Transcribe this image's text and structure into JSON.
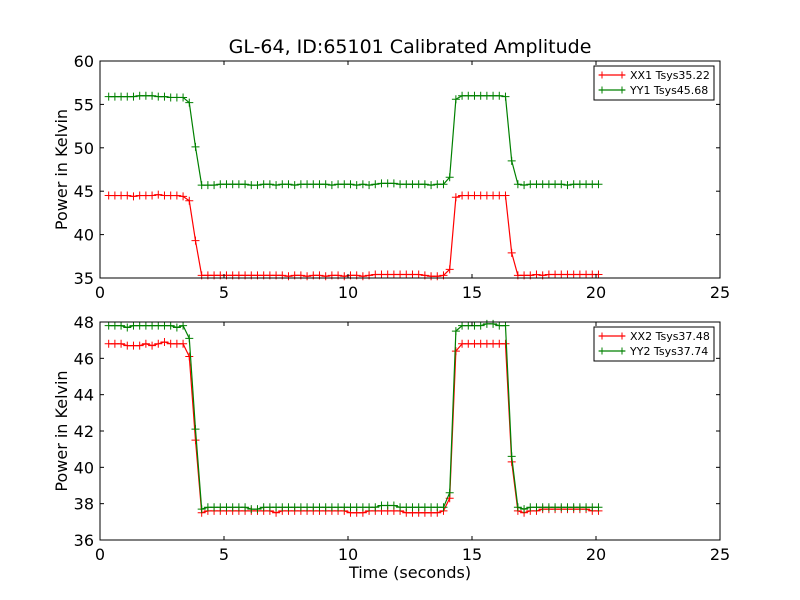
{
  "chart_data": [
    {
      "type": "line",
      "title": "GL-64, ID:65101 Calibrated Amplitude",
      "xlabel": "",
      "ylabel": "Power in Kelvin",
      "xlim": [
        0,
        25
      ],
      "ylim": [
        35,
        60
      ],
      "xticks": [
        "0",
        "5",
        "10",
        "15",
        "20",
        "25"
      ],
      "yticks": [
        "35",
        "40",
        "45",
        "50",
        "55",
        "60"
      ],
      "grid": false,
      "legend_position": "top-right",
      "x": [
        0.35,
        0.6,
        0.85,
        1.1,
        1.35,
        1.6,
        1.85,
        2.1,
        2.35,
        2.6,
        2.85,
        3.1,
        3.35,
        3.6,
        3.85,
        4.1,
        4.35,
        4.6,
        4.85,
        5.1,
        5.35,
        5.6,
        5.85,
        6.1,
        6.35,
        6.6,
        6.85,
        7.1,
        7.35,
        7.6,
        7.85,
        8.1,
        8.35,
        8.6,
        8.85,
        9.1,
        9.35,
        9.6,
        9.85,
        10.1,
        10.35,
        10.6,
        10.85,
        11.1,
        11.35,
        11.6,
        11.85,
        12.1,
        12.35,
        12.6,
        12.85,
        13.1,
        13.35,
        13.6,
        13.85,
        14.1,
        14.35,
        14.6,
        14.85,
        15.1,
        15.35,
        15.6,
        15.85,
        16.1,
        16.35,
        16.6,
        16.85,
        17.1,
        17.35,
        17.6,
        17.85,
        18.1,
        18.35,
        18.6,
        18.85,
        19.1,
        19.35,
        19.6,
        19.85,
        20.1
      ],
      "series": [
        {
          "name": "XX1 Tsys35.22",
          "color": "#ff0000",
          "values": [
            44.5,
            44.5,
            44.5,
            44.5,
            44.4,
            44.5,
            44.5,
            44.5,
            44.6,
            44.5,
            44.5,
            44.5,
            44.4,
            43.9,
            39.3,
            35.3,
            35.3,
            35.3,
            35.3,
            35.3,
            35.3,
            35.3,
            35.3,
            35.3,
            35.3,
            35.3,
            35.3,
            35.3,
            35.3,
            35.2,
            35.3,
            35.3,
            35.2,
            35.3,
            35.3,
            35.2,
            35.3,
            35.3,
            35.2,
            35.3,
            35.3,
            35.2,
            35.3,
            35.4,
            35.4,
            35.4,
            35.4,
            35.4,
            35.4,
            35.4,
            35.4,
            35.3,
            35.2,
            35.2,
            35.3,
            36.0,
            44.3,
            44.5,
            44.5,
            44.5,
            44.5,
            44.5,
            44.5,
            44.5,
            44.5,
            37.9,
            35.3,
            35.3,
            35.3,
            35.4,
            35.3,
            35.4,
            35.4,
            35.4,
            35.4,
            35.4,
            35.4,
            35.4,
            35.4,
            35.4
          ]
        },
        {
          "name": "YY1 Tsys45.68",
          "color": "#008000",
          "values": [
            55.9,
            55.9,
            55.9,
            55.9,
            55.9,
            56.0,
            56.0,
            56.0,
            55.9,
            55.9,
            55.8,
            55.8,
            55.8,
            55.2,
            50.1,
            45.7,
            45.7,
            45.7,
            45.8,
            45.8,
            45.8,
            45.8,
            45.8,
            45.7,
            45.7,
            45.8,
            45.8,
            45.7,
            45.8,
            45.8,
            45.7,
            45.8,
            45.8,
            45.8,
            45.8,
            45.8,
            45.7,
            45.8,
            45.8,
            45.8,
            45.7,
            45.8,
            45.7,
            45.8,
            45.9,
            45.9,
            45.9,
            45.8,
            45.8,
            45.8,
            45.8,
            45.8,
            45.7,
            45.8,
            45.8,
            46.6,
            55.6,
            56.0,
            56.0,
            56.0,
            56.0,
            56.0,
            56.0,
            56.0,
            55.9,
            48.5,
            45.8,
            45.7,
            45.8,
            45.8,
            45.8,
            45.8,
            45.8,
            45.8,
            45.7,
            45.8,
            45.8,
            45.8,
            45.8,
            45.8
          ]
        }
      ]
    },
    {
      "type": "line",
      "title": "",
      "xlabel": "Time (seconds)",
      "ylabel": "Power in Kelvin",
      "xlim": [
        0,
        25
      ],
      "ylim": [
        36,
        48
      ],
      "xticks": [
        "0",
        "5",
        "10",
        "15",
        "20",
        "25"
      ],
      "yticks": [
        "36",
        "38",
        "40",
        "42",
        "44",
        "46",
        "48"
      ],
      "grid": false,
      "legend_position": "top-right",
      "x": [
        0.35,
        0.6,
        0.85,
        1.1,
        1.35,
        1.6,
        1.85,
        2.1,
        2.35,
        2.6,
        2.85,
        3.1,
        3.35,
        3.6,
        3.85,
        4.1,
        4.35,
        4.6,
        4.85,
        5.1,
        5.35,
        5.6,
        5.85,
        6.1,
        6.35,
        6.6,
        6.85,
        7.1,
        7.35,
        7.6,
        7.85,
        8.1,
        8.35,
        8.6,
        8.85,
        9.1,
        9.35,
        9.6,
        9.85,
        10.1,
        10.35,
        10.6,
        10.85,
        11.1,
        11.35,
        11.6,
        11.85,
        12.1,
        12.35,
        12.6,
        12.85,
        13.1,
        13.35,
        13.6,
        13.85,
        14.1,
        14.35,
        14.6,
        14.85,
        15.1,
        15.35,
        15.6,
        15.85,
        16.1,
        16.35,
        16.6,
        16.85,
        17.1,
        17.35,
        17.6,
        17.85,
        18.1,
        18.35,
        18.6,
        18.85,
        19.1,
        19.35,
        19.6,
        19.85,
        20.1
      ],
      "series": [
        {
          "name": "XX2 Tsys37.48",
          "color": "#ff0000",
          "values": [
            46.8,
            46.8,
            46.8,
            46.7,
            46.7,
            46.7,
            46.8,
            46.7,
            46.8,
            46.9,
            46.8,
            46.8,
            46.8,
            46.1,
            41.5,
            37.5,
            37.6,
            37.6,
            37.6,
            37.6,
            37.6,
            37.6,
            37.6,
            37.6,
            37.6,
            37.6,
            37.6,
            37.5,
            37.6,
            37.6,
            37.6,
            37.6,
            37.6,
            37.6,
            37.6,
            37.6,
            37.6,
            37.6,
            37.6,
            37.5,
            37.5,
            37.5,
            37.6,
            37.6,
            37.6,
            37.6,
            37.6,
            37.6,
            37.5,
            37.5,
            37.5,
            37.5,
            37.5,
            37.5,
            37.6,
            38.3,
            46.4,
            46.8,
            46.8,
            46.8,
            46.8,
            46.8,
            46.8,
            46.8,
            46.8,
            40.3,
            37.6,
            37.5,
            37.6,
            37.6,
            37.7,
            37.7,
            37.7,
            37.7,
            37.7,
            37.7,
            37.7,
            37.7,
            37.6,
            37.6
          ]
        },
        {
          "name": "YY2 Tsys37.74",
          "color": "#008000",
          "values": [
            47.8,
            47.8,
            47.8,
            47.7,
            47.8,
            47.8,
            47.8,
            47.8,
            47.8,
            47.8,
            47.8,
            47.7,
            47.8,
            47.1,
            42.1,
            37.7,
            37.8,
            37.8,
            37.8,
            37.8,
            37.8,
            37.8,
            37.8,
            37.7,
            37.7,
            37.8,
            37.8,
            37.8,
            37.8,
            37.8,
            37.8,
            37.8,
            37.8,
            37.8,
            37.8,
            37.8,
            37.8,
            37.8,
            37.8,
            37.8,
            37.8,
            37.8,
            37.8,
            37.8,
            37.9,
            37.9,
            37.9,
            37.8,
            37.8,
            37.8,
            37.8,
            37.8,
            37.8,
            37.8,
            37.8,
            38.6,
            47.5,
            47.8,
            47.8,
            47.8,
            47.8,
            47.9,
            47.9,
            47.8,
            47.8,
            40.6,
            37.8,
            37.7,
            37.8,
            37.8,
            37.8,
            37.8,
            37.8,
            37.8,
            37.8,
            37.8,
            37.8,
            37.8,
            37.8,
            37.8
          ]
        }
      ]
    }
  ]
}
